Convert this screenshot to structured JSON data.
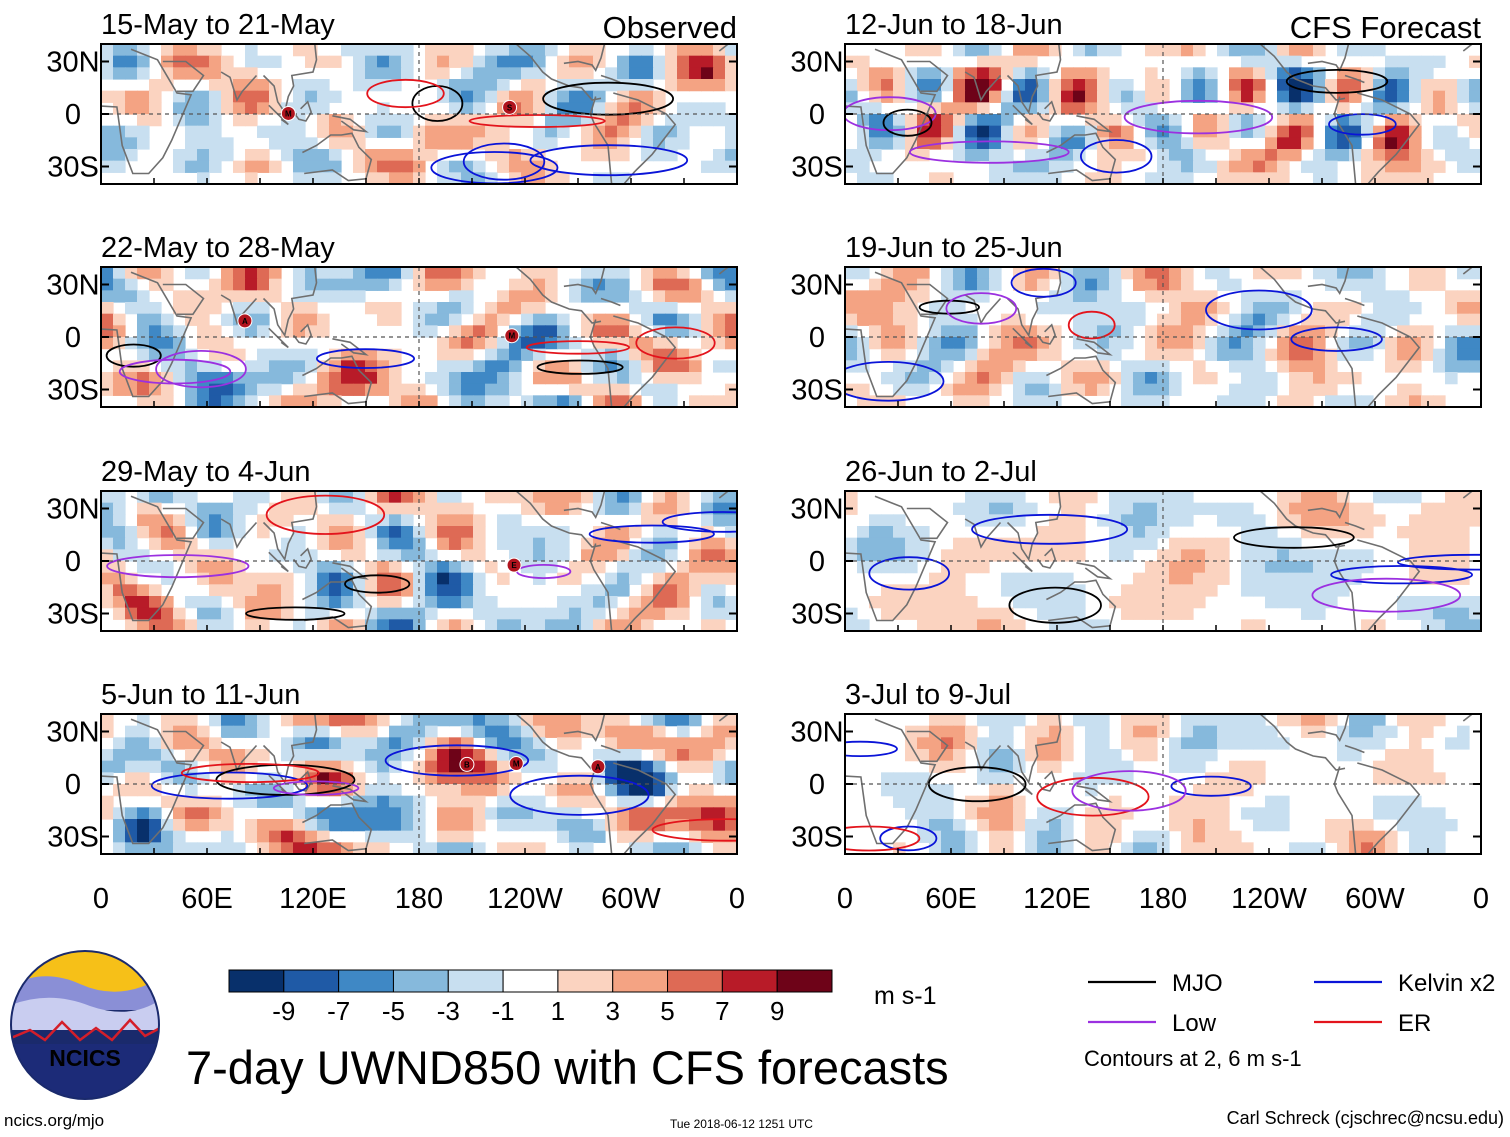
{
  "chart_data": {
    "type": "heatmap",
    "title": "7-day UWND850 with CFS forecasts",
    "variable": "UWND850",
    "units": "m s-1",
    "columns": [
      {
        "id": "observed",
        "label": "Observed"
      },
      {
        "id": "forecast",
        "label": "CFS Forecast"
      }
    ],
    "panels": [
      {
        "id": "p1",
        "column": "observed",
        "label": "15-May to 21-May",
        "badges": [
          "S",
          "M"
        ]
      },
      {
        "id": "p2",
        "column": "observed",
        "label": "22-May to 28-May",
        "badges": [
          "M",
          "A"
        ]
      },
      {
        "id": "p3",
        "column": "observed",
        "label": "29-May to 4-Jun",
        "badges": [
          "E"
        ]
      },
      {
        "id": "p4",
        "column": "observed",
        "label": "5-Jun to 11-Jun",
        "badges": [
          "M",
          "A",
          "B"
        ]
      },
      {
        "id": "p5",
        "column": "forecast",
        "label": "12-Jun to 18-Jun",
        "badges": []
      },
      {
        "id": "p6",
        "column": "forecast",
        "label": "19-Jun to 25-Jun",
        "badges": []
      },
      {
        "id": "p7",
        "column": "forecast",
        "label": "26-Jun to 2-Jul",
        "badges": []
      },
      {
        "id": "p8",
        "column": "forecast",
        "label": "3-Jul to 9-Jul",
        "badges": []
      }
    ],
    "x_axis": {
      "ticks": [
        "0",
        "60E",
        "120E",
        "180",
        "120W",
        "60W",
        "0"
      ],
      "lon_range": [
        0,
        360
      ]
    },
    "y_axis": {
      "ticks": [
        "30N",
        "0",
        "30S"
      ],
      "lat_range": [
        -40,
        40
      ]
    },
    "colorbar": {
      "levels": [
        -11,
        -9,
        -7,
        -5,
        -3,
        -1,
        1,
        3,
        5,
        7,
        9,
        11
      ],
      "tick_labels": [
        "-9",
        "-7",
        "-5",
        "-3",
        "-1",
        "1",
        "3",
        "5",
        "7",
        "9"
      ],
      "colors": [
        "#08306b",
        "#1f5aa6",
        "#3f88c5",
        "#86b9dc",
        "#c8dff0",
        "#ffffff",
        "#fbd3c0",
        "#f4a383",
        "#de6a55",
        "#b81b28",
        "#6e0318"
      ]
    },
    "legend": [
      {
        "label": "MJO",
        "color": "#000000"
      },
      {
        "label": "Kelvin x2",
        "color": "#0a14d8"
      },
      {
        "label": "Low",
        "color": "#9b30e0"
      },
      {
        "label": "ER",
        "color": "#e3141c"
      }
    ],
    "contour_note": "Contours at 2, 6 m s-1"
  },
  "footer": {
    "logo_text": "NCICS",
    "site": "ncics.org/mjo",
    "timestamp": "Tue 2018-06-12 1251 UTC",
    "credit": "Carl Schreck (cjschrec@ncsu.edu)"
  },
  "colors": {
    "land_outline": "#6f6f6f",
    "guide_dash": "#555555"
  }
}
